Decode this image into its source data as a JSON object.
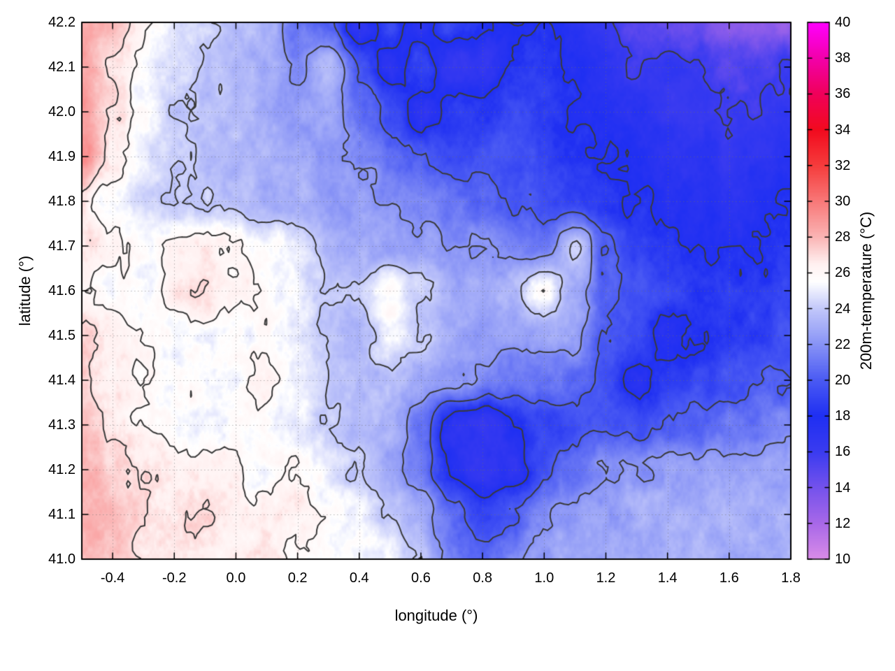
{
  "chart_data": {
    "type": "heatmap",
    "title": "",
    "xlabel": "longitude (°)",
    "ylabel": "latitude (°)",
    "colorbar_label": "200m-temperature (°C)",
    "xlim": [
      -0.5,
      1.8
    ],
    "ylim": [
      41.0,
      42.2
    ],
    "clim": [
      10,
      40
    ],
    "grid": true,
    "legend": "none",
    "x_tick_values": [
      -0.4,
      -0.2,
      0.0,
      0.2,
      0.4,
      0.6,
      0.8,
      1.0,
      1.2,
      1.4,
      1.6,
      1.8
    ],
    "x_tick_labels": [
      "-0.4",
      "-0.2",
      "0.0",
      "0.2",
      "0.4",
      "0.6",
      "0.8",
      "1.0",
      "1.2",
      "1.4",
      "1.6",
      "1.8"
    ],
    "y_tick_values": [
      41.0,
      41.1,
      41.2,
      41.3,
      41.4,
      41.5,
      41.6,
      41.7,
      41.8,
      41.9,
      42.0,
      42.1,
      42.2
    ],
    "y_tick_labels": [
      "41.0",
      "41.1",
      "41.2",
      "41.3",
      "41.4",
      "41.5",
      "41.6",
      "41.7",
      "41.8",
      "41.9",
      "42.0",
      "42.1",
      "42.2"
    ],
    "colorbar_tick_values": [
      10,
      12,
      14,
      16,
      18,
      20,
      22,
      24,
      26,
      28,
      30,
      32,
      34,
      36,
      38,
      40
    ],
    "colorbar_tick_labels": [
      "10",
      "12",
      "14",
      "16",
      "18",
      "20",
      "22",
      "24",
      "26",
      "28",
      "30",
      "32",
      "34",
      "36",
      "38",
      "40"
    ],
    "lon": [
      -0.5,
      -0.4,
      -0.3,
      -0.2,
      -0.1,
      0.0,
      0.1,
      0.2,
      0.3,
      0.4,
      0.5,
      0.6,
      0.7,
      0.8,
      0.9,
      1.0,
      1.1,
      1.2,
      1.3,
      1.4,
      1.5,
      1.6,
      1.7,
      1.8
    ],
    "lat": [
      41.0,
      41.1,
      41.2,
      41.3,
      41.4,
      41.5,
      41.6,
      41.7,
      41.8,
      41.9,
      42.0,
      42.1,
      42.2
    ],
    "temperature_c": [
      [
        28,
        27.5,
        27,
        27,
        26.5,
        26.5,
        26.5,
        26,
        25.5,
        25.5,
        25,
        24,
        21.5,
        20.5,
        21.5,
        22.5,
        23,
        23,
        23,
        23,
        23,
        23,
        23,
        23.5
      ],
      [
        28,
        28,
        27,
        26.5,
        27,
        26.5,
        26,
        26.5,
        25.5,
        25,
        24,
        23,
        20.5,
        19,
        20,
        22,
        22.5,
        22.5,
        23,
        23,
        23,
        23,
        23,
        23
      ],
      [
        28,
        27.5,
        27,
        26.5,
        26.5,
        26,
        25.5,
        26,
        25,
        24,
        23,
        21,
        17.5,
        16.5,
        17,
        19.5,
        21,
        22,
        22,
        22.5,
        22.5,
        22.5,
        22.5,
        23
      ],
      [
        27.5,
        27,
        26,
        25.5,
        25.5,
        25.5,
        25.5,
        25,
        24,
        23.5,
        23,
        21,
        17,
        16.5,
        18,
        19,
        19.5,
        19.5,
        19.5,
        20,
        20.5,
        21,
        21,
        21.5
      ],
      [
        27,
        26.5,
        26,
        25.5,
        25.5,
        25.5,
        26.5,
        25,
        24,
        23.5,
        23.5,
        23,
        22.5,
        21.5,
        21,
        21,
        20.5,
        19.5,
        17.5,
        18.5,
        19,
        19.5,
        20,
        20
      ],
      [
        27.5,
        26.5,
        26,
        25.5,
        25.5,
        25.5,
        25.5,
        25,
        24,
        23.5,
        25,
        24,
        23,
        22.5,
        22.5,
        23,
        22.5,
        20,
        19,
        17.5,
        18,
        18.5,
        19,
        19.5
      ],
      [
        26,
        25.5,
        25.5,
        26.5,
        27,
        26.5,
        25.5,
        25,
        24,
        24,
        26,
        24,
        23,
        23,
        23.5,
        26,
        23,
        20.5,
        19.5,
        19,
        18.5,
        18.5,
        18.5,
        19
      ],
      [
        27,
        26.5,
        25.5,
        26,
        26.5,
        26,
        25.5,
        25,
        23.5,
        23,
        22.5,
        22.5,
        22,
        22,
        21.5,
        21,
        24,
        20,
        19,
        18.5,
        18,
        18,
        18,
        18.5
      ],
      [
        26.5,
        25.5,
        24.5,
        24,
        24,
        23.5,
        23,
        23,
        22.5,
        22.5,
        22,
        21.5,
        21,
        20.5,
        20,
        19.5,
        19,
        18.5,
        18,
        17.5,
        17.5,
        17,
        17.5,
        18
      ],
      [
        29,
        26.5,
        25,
        24,
        23.5,
        23.5,
        23,
        23,
        22.5,
        22,
        21,
        20,
        19.5,
        19.5,
        19.5,
        19,
        18.5,
        18,
        17.5,
        17,
        17,
        16.5,
        17,
        17
      ],
      [
        29,
        27,
        25.5,
        24,
        23.5,
        23.5,
        23,
        22.5,
        23,
        21,
        19.5,
        17,
        18.5,
        18.5,
        19,
        18.5,
        18,
        17.5,
        17,
        16.5,
        16.5,
        16,
        16,
        16.5
      ],
      [
        28.5,
        27,
        25.5,
        24.5,
        24,
        23.5,
        23,
        21.5,
        24,
        20,
        17,
        19,
        16.5,
        16.5,
        18,
        18.5,
        18,
        17,
        16,
        16.5,
        16,
        15,
        15.5,
        16
      ],
      [
        28,
        28,
        26.5,
        25,
        24,
        23.5,
        23,
        21,
        20,
        17,
        19,
        17,
        19,
        18,
        18,
        18,
        17,
        16,
        15,
        14.5,
        14,
        13.5,
        13,
        13
      ]
    ],
    "contour_levels": [
      16,
      18,
      20,
      22,
      24,
      26,
      27
    ],
    "colormap_stops": [
      {
        "value": 10,
        "color": "#d98ce8"
      },
      {
        "value": 12,
        "color": "#a868e8"
      },
      {
        "value": 14,
        "color": "#7452ec"
      },
      {
        "value": 16,
        "color": "#3a3bf0"
      },
      {
        "value": 18,
        "color": "#1f2ff2"
      },
      {
        "value": 20,
        "color": "#4a5af3"
      },
      {
        "value": 22,
        "color": "#8893f6"
      },
      {
        "value": 24,
        "color": "#c2c8fa"
      },
      {
        "value": 25.5,
        "color": "#ffffff"
      },
      {
        "value": 26.5,
        "color": "#fff0f0"
      },
      {
        "value": 28,
        "color": "#fab4b4"
      },
      {
        "value": 30,
        "color": "#f87878"
      },
      {
        "value": 32,
        "color": "#f53c3c"
      },
      {
        "value": 34,
        "color": "#f20a1e"
      },
      {
        "value": 36,
        "color": "#f0005a"
      },
      {
        "value": 38,
        "color": "#f200aa"
      },
      {
        "value": 40,
        "color": "#ff00ff"
      }
    ],
    "contour_color": "#3a3a3a",
    "grid_color": "#787878",
    "axis_color": "#000000",
    "background_color": "#ffffff"
  }
}
